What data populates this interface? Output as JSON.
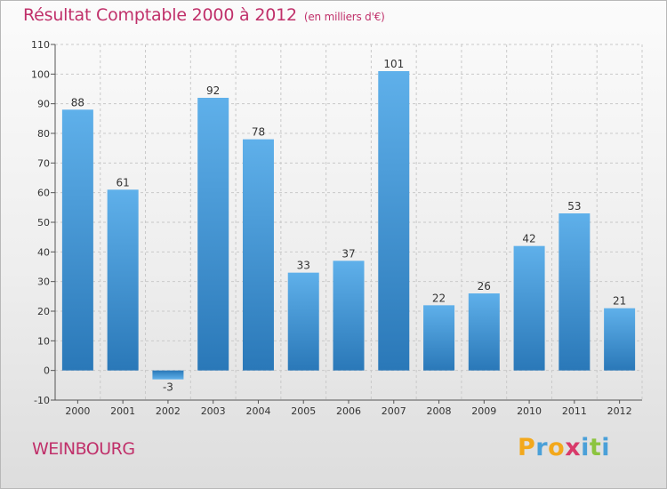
{
  "chart_data": {
    "type": "bar",
    "title": "Résultat Comptable 2000 à 2012",
    "subtitle": "(en milliers d'€)",
    "categories": [
      "2000",
      "2001",
      "2002",
      "2003",
      "2004",
      "2005",
      "2006",
      "2007",
      "2008",
      "2009",
      "2010",
      "2011",
      "2012"
    ],
    "values": [
      88,
      61,
      -3,
      92,
      78,
      33,
      37,
      101,
      22,
      26,
      42,
      53,
      21
    ],
    "ylim": [
      -10,
      110
    ],
    "yticks": [
      -10,
      0,
      10,
      20,
      30,
      40,
      50,
      60,
      70,
      80,
      90,
      100,
      110
    ],
    "grid": true,
    "bar_color": "#4a9ee0",
    "bar_color_dark": "#2a78b8"
  },
  "footer": {
    "city": "WEINBOURG",
    "logo_letters": [
      "P",
      "r",
      "o",
      "x",
      "i",
      "t",
      "i"
    ],
    "logo_colors": [
      "#f3a81b",
      "#4aa0d8",
      "#f3a81b",
      "#d83a6a",
      "#4aa0d8",
      "#8cc43f",
      "#4aa0d8"
    ]
  },
  "colors": {
    "title": "#c0306a",
    "grid": "#c9c9c9"
  }
}
